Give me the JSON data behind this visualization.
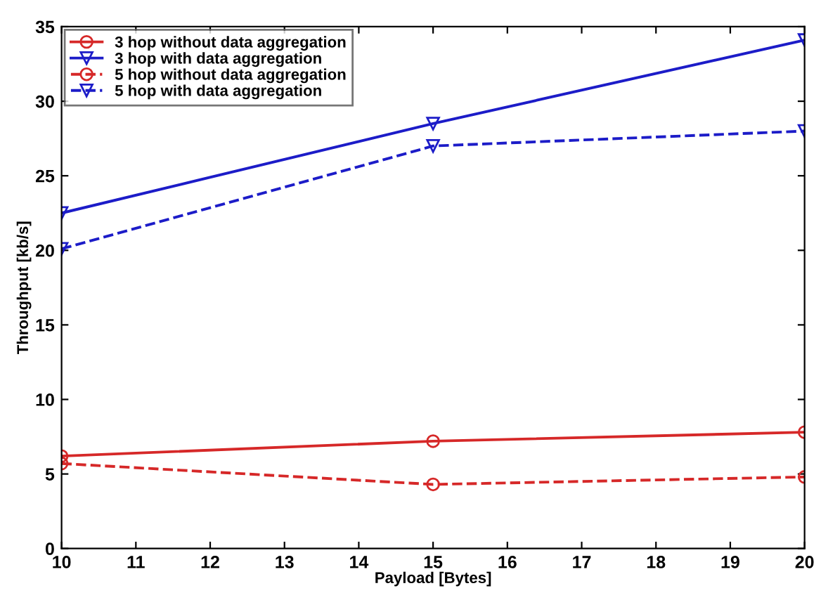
{
  "chart_data": {
    "type": "line",
    "xlabel": "Payload [Bytes]",
    "ylabel": "Throughput [kb/s]",
    "x": [
      10,
      15,
      20
    ],
    "series": [
      {
        "name": "3 hop without data aggregation",
        "color": "#d62828",
        "marker": "circle",
        "line_style": "solid",
        "values": [
          6.2,
          7.2,
          7.8
        ]
      },
      {
        "name": "3 hop with data aggregation",
        "color": "#1c1cc8",
        "marker": "triangle",
        "line_style": "solid",
        "values": [
          22.5,
          28.5,
          34.1
        ]
      },
      {
        "name": "5 hop without data aggregation",
        "color": "#d62828",
        "marker": "circle",
        "line_style": "dashed",
        "values": [
          5.7,
          4.3,
          4.8
        ]
      },
      {
        "name": "5 hop with data aggregation",
        "color": "#1c1cc8",
        "marker": "triangle",
        "line_style": "dashed",
        "values": [
          20.1,
          27.0,
          28.0
        ]
      }
    ],
    "xlim": [
      10,
      20
    ],
    "xticks": [
      10,
      11,
      12,
      13,
      14,
      15,
      16,
      17,
      18,
      19,
      20
    ],
    "ylim": [
      0,
      35
    ],
    "yticks": [
      0,
      5,
      10,
      15,
      20,
      25,
      30,
      35
    ],
    "grid": false,
    "legend": "top left"
  }
}
